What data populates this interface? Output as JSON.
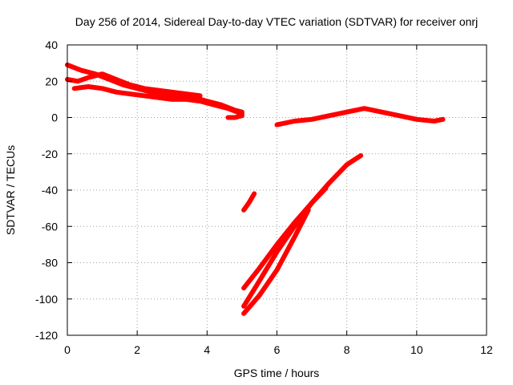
{
  "chart_data": {
    "type": "scatter",
    "title": "Day 256 of 2014, Sidereal Day-to-day VTEC variation (SDTVAR) for receiver onrj",
    "xlabel": "GPS time / hours",
    "ylabel": "SDTVAR / TECUs",
    "xlim": [
      0,
      12
    ],
    "ylim": [
      -120,
      40
    ],
    "xticks": [
      0,
      2,
      4,
      6,
      8,
      10,
      12
    ],
    "yticks": [
      -120,
      -100,
      -80,
      -60,
      -40,
      -20,
      0,
      20,
      40
    ],
    "grid": true,
    "color": "#ff0000",
    "series": [
      {
        "x": [
          0.0,
          0.4,
          0.8,
          1.2,
          1.6,
          2.0,
          2.4,
          2.8,
          3.2,
          3.6,
          4.0,
          4.4,
          4.8,
          5.0
        ],
        "y": [
          29,
          26,
          24,
          21,
          18,
          16,
          14,
          13,
          12,
          11,
          9,
          7,
          4,
          3
        ]
      },
      {
        "x": [
          0.0,
          0.3,
          0.6,
          1.0,
          1.4,
          1.8,
          2.2,
          2.6,
          3.0,
          3.4,
          3.8
        ],
        "y": [
          21,
          20,
          22,
          24,
          21,
          18,
          16,
          15,
          14,
          13,
          12
        ]
      },
      {
        "x": [
          0.2,
          0.6,
          1.0,
          1.4,
          1.8,
          2.2,
          2.6,
          3.0,
          3.4,
          3.8,
          4.2,
          4.6,
          5.0
        ],
        "y": [
          16,
          17,
          16,
          14,
          13,
          12,
          11,
          10,
          10,
          9,
          7,
          5,
          2
        ]
      },
      {
        "x": [
          4.6,
          4.8,
          5.0
        ],
        "y": [
          0,
          0,
          1
        ]
      },
      {
        "x": [
          6.0,
          6.5,
          7.0,
          7.5,
          8.0,
          8.5,
          9.0,
          9.5,
          10.0,
          10.5,
          10.75
        ],
        "y": [
          -4,
          -2,
          -1,
          1,
          3,
          5,
          3,
          1,
          -1,
          -2,
          -1
        ]
      },
      {
        "x": [
          5.05,
          5.2,
          5.35
        ],
        "y": [
          -51,
          -47,
          -42
        ]
      },
      {
        "x": [
          5.05,
          5.5,
          6.0,
          6.5,
          7.0,
          7.5,
          8.0,
          8.4
        ],
        "y": [
          -94,
          -83,
          -70,
          -58,
          -47,
          -36,
          -26,
          -21
        ]
      },
      {
        "x": [
          5.05,
          5.5,
          6.0,
          6.5,
          7.0,
          7.4
        ],
        "y": [
          -104,
          -90,
          -74,
          -60,
          -47,
          -39
        ]
      },
      {
        "x": [
          5.05,
          5.5,
          6.0,
          6.5,
          6.9
        ],
        "y": [
          -108,
          -98,
          -84,
          -66,
          -51
        ]
      }
    ]
  }
}
